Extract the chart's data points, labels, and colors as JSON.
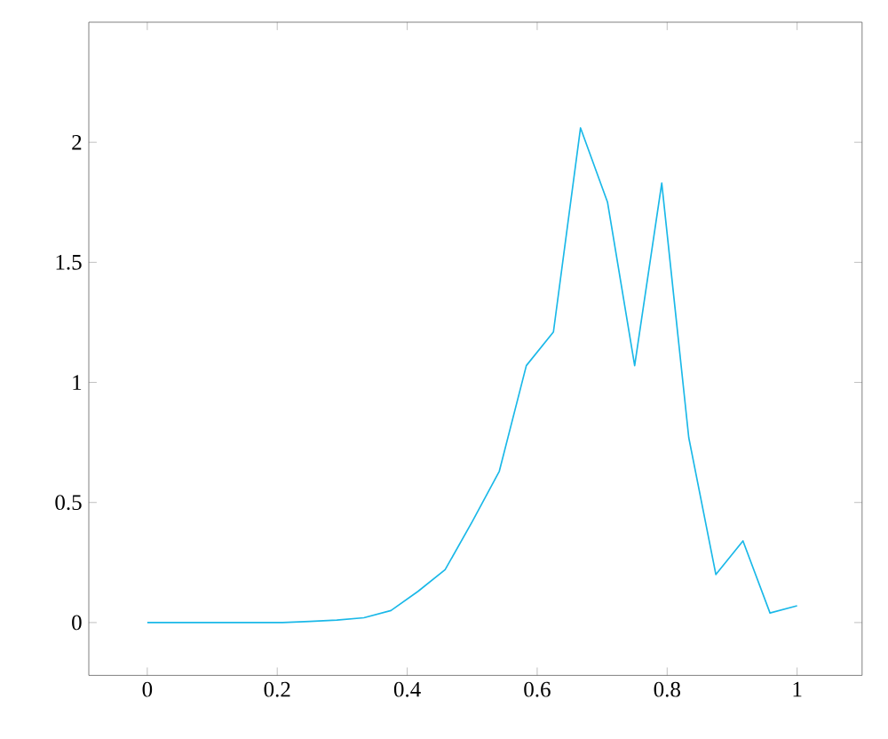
{
  "chart_data": {
    "type": "line",
    "x": [
      0,
      0.0417,
      0.0833,
      0.125,
      0.1667,
      0.2083,
      0.25,
      0.2917,
      0.3333,
      0.375,
      0.4167,
      0.4583,
      0.5,
      0.5417,
      0.5833,
      0.625,
      0.6667,
      0.7083,
      0.75,
      0.7917,
      0.8333,
      0.875,
      0.9167,
      0.9583,
      1
    ],
    "series": [
      {
        "color": "#1ab8e8",
        "values": [
          0,
          0,
          0,
          0,
          0,
          0,
          0.005,
          0.01,
          0.02,
          0.05,
          0.13,
          0.22,
          0.42,
          0.63,
          1.07,
          1.21,
          2.06,
          1.75,
          1.07,
          1.83,
          0.77,
          0.2,
          0.34,
          0.04,
          0.07
        ]
      }
    ],
    "xlim": [
      -0.09,
      1.1
    ],
    "ylim": [
      -0.22,
      2.5
    ],
    "xticks": [
      0,
      0.2,
      0.4,
      0.6,
      0.8,
      1
    ],
    "yticks": [
      0,
      0.5,
      1,
      1.5,
      2
    ],
    "marker": "none",
    "line_style": "solid"
  }
}
